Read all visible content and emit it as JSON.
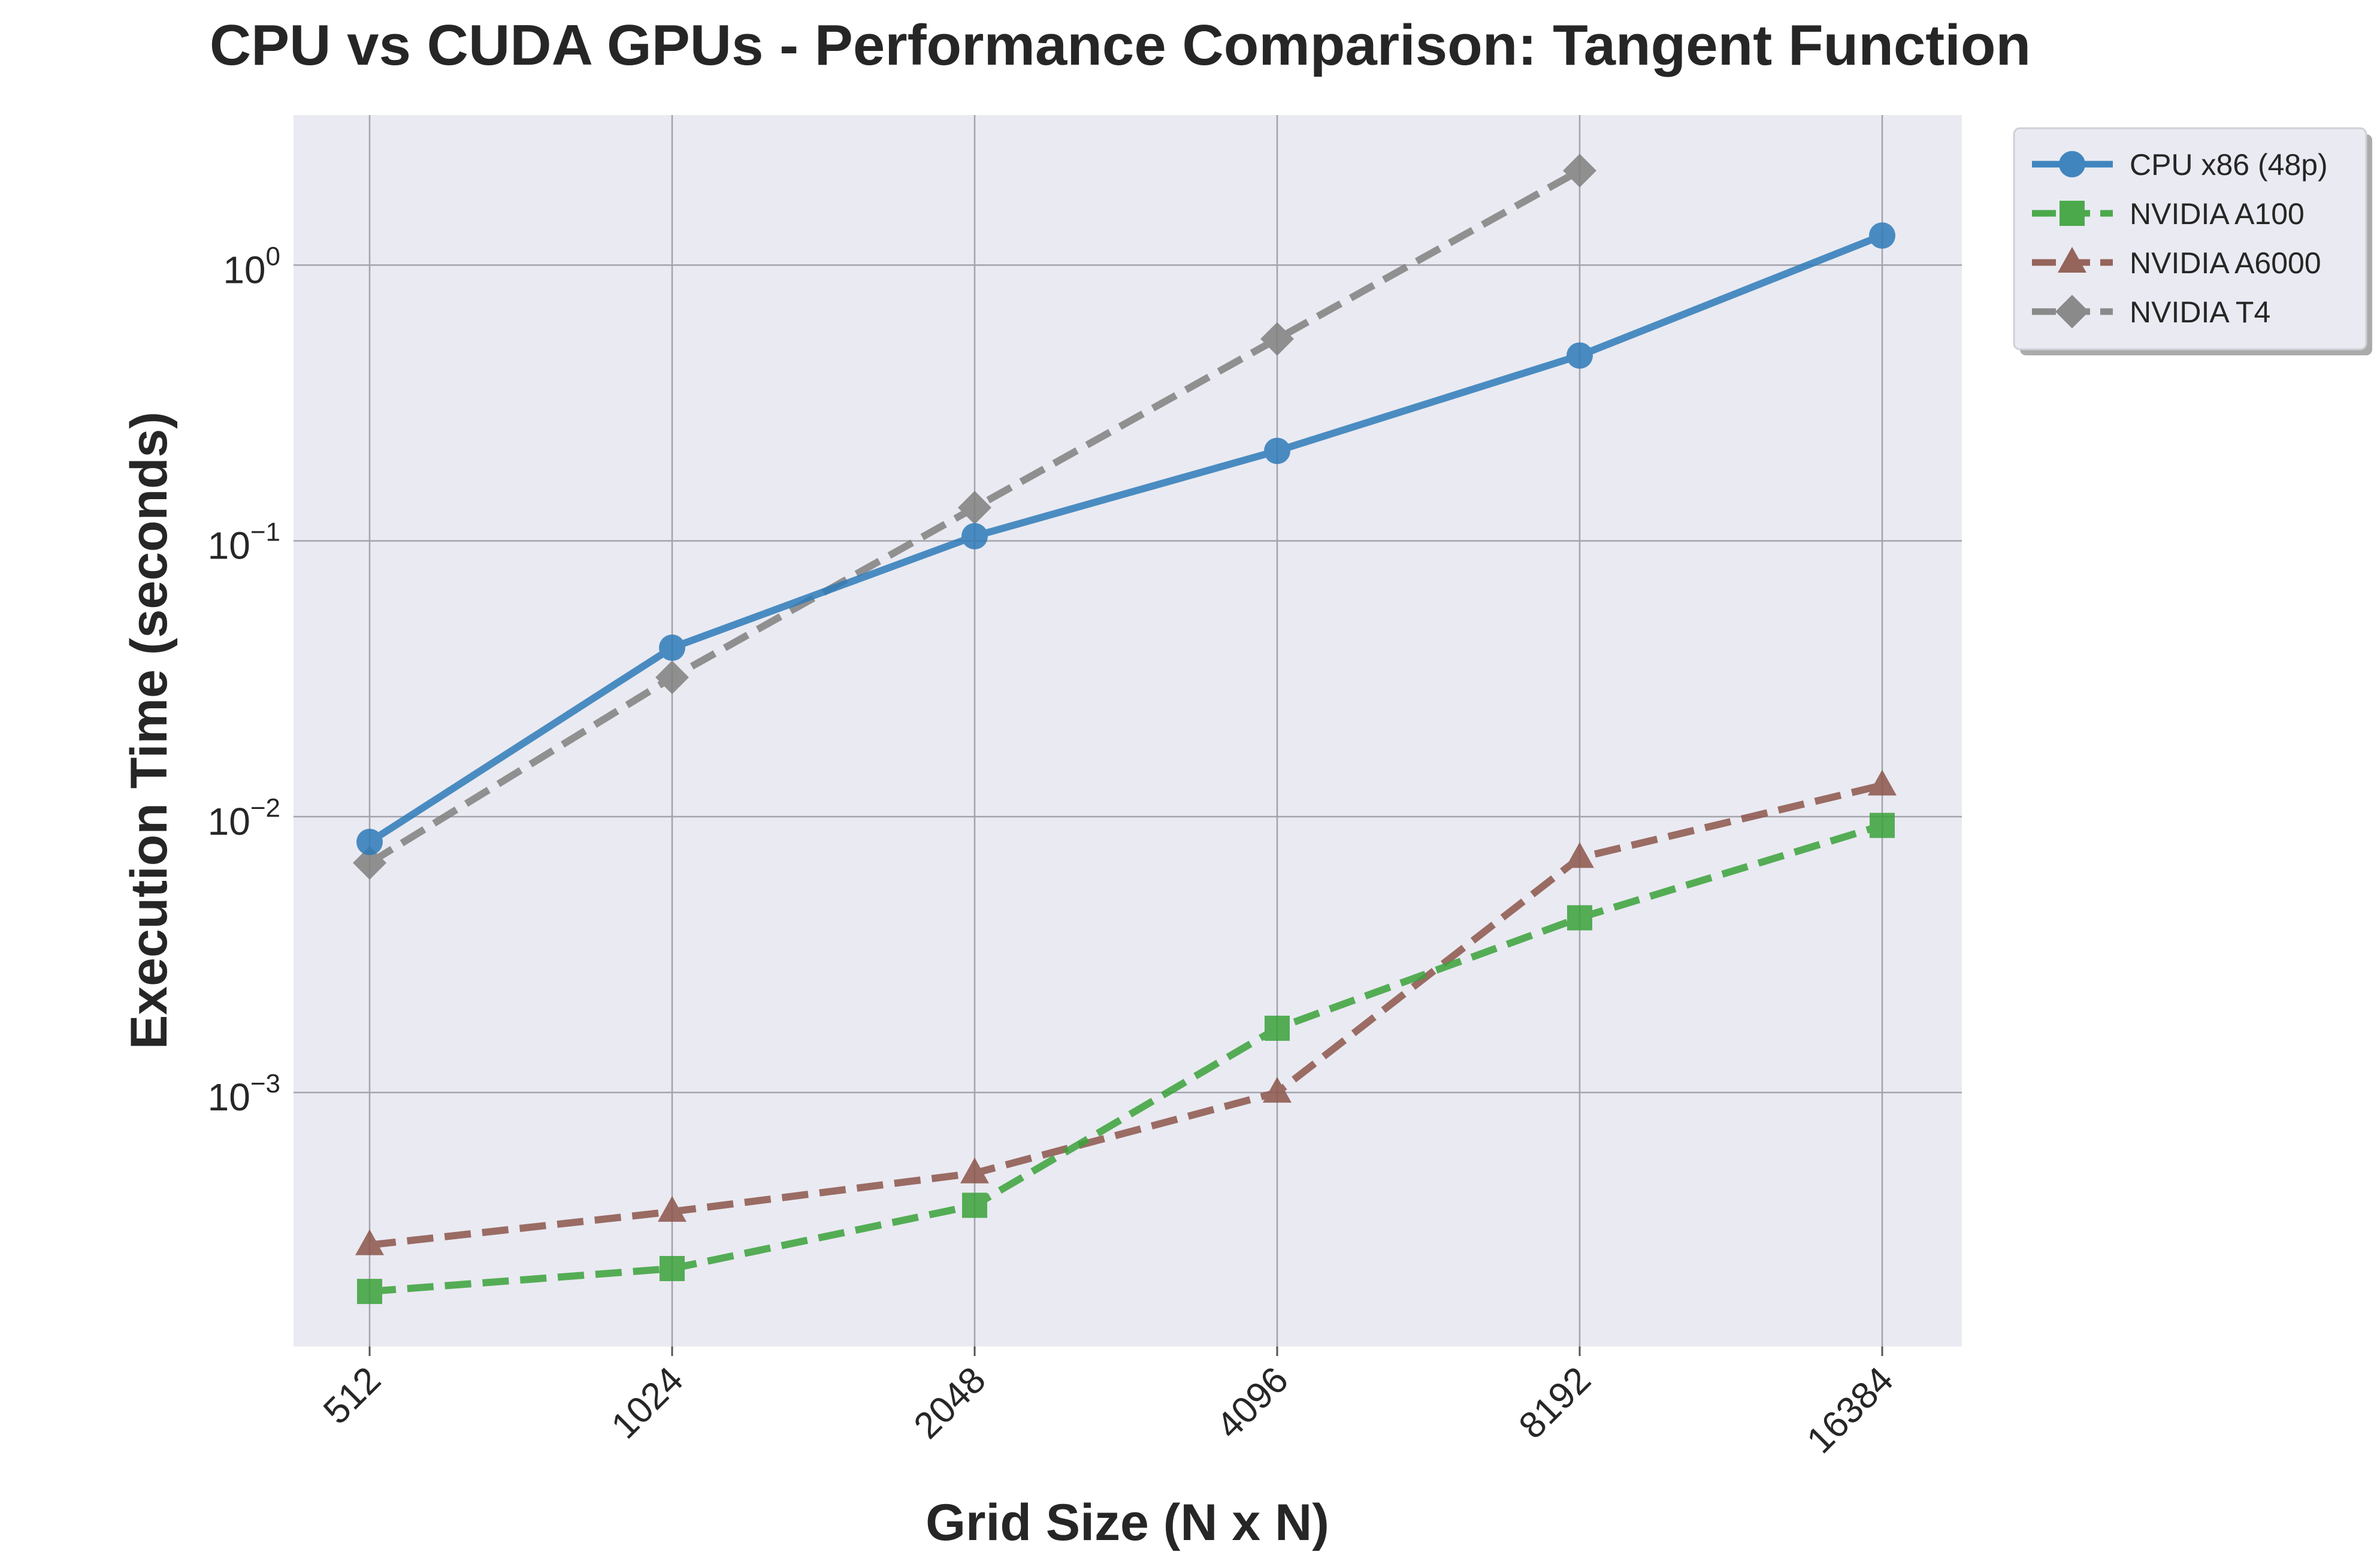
{
  "chart_data": {
    "type": "line",
    "title": "CPU vs CUDA GPUs - Performance Comparison: Tangent Function",
    "xlabel": "Grid Size (N x N)",
    "ylabel": "Execution Time (seconds)",
    "x_scale": "categorical",
    "y_scale": "log",
    "categories": [
      "512",
      "1024",
      "2048",
      "4096",
      "8192",
      "16384"
    ],
    "ylim": [
      0.00012,
      3.5
    ],
    "y_ticks": [
      {
        "value": 1,
        "base": "10",
        "exponent": "0"
      },
      {
        "value": 0.1,
        "base": "10",
        "exponent": "−1"
      },
      {
        "value": 0.01,
        "base": "10",
        "exponent": "−2"
      },
      {
        "value": 0.001,
        "base": "10",
        "exponent": "−3"
      }
    ],
    "grid": true,
    "legend_position": "outside-top-right",
    "series": [
      {
        "name": "CPU x86 (48p)",
        "color": "#2E7BB9",
        "line_style": "solid",
        "marker": "circle",
        "values": [
          0.0081,
          0.041,
          0.104,
          0.212,
          0.47,
          1.28
        ]
      },
      {
        "name": "NVIDIA A100",
        "color": "#3AA23A",
        "line_style": "dashed",
        "marker": "square",
        "values": [
          0.00019,
          0.00023,
          0.00039,
          0.00171,
          0.0043,
          0.0093
        ]
      },
      {
        "name": "NVIDIA A6000",
        "color": "#8C564B",
        "line_style": "dashed",
        "marker": "triangle",
        "values": [
          0.00028,
          0.00037,
          0.00051,
          0.001,
          0.0071,
          0.013
        ]
      },
      {
        "name": "NVIDIA T4",
        "color": "#808080",
        "line_style": "dashed",
        "marker": "diamond",
        "values": [
          0.0068,
          0.032,
          0.132,
          0.54,
          2.2,
          null
        ]
      }
    ]
  }
}
